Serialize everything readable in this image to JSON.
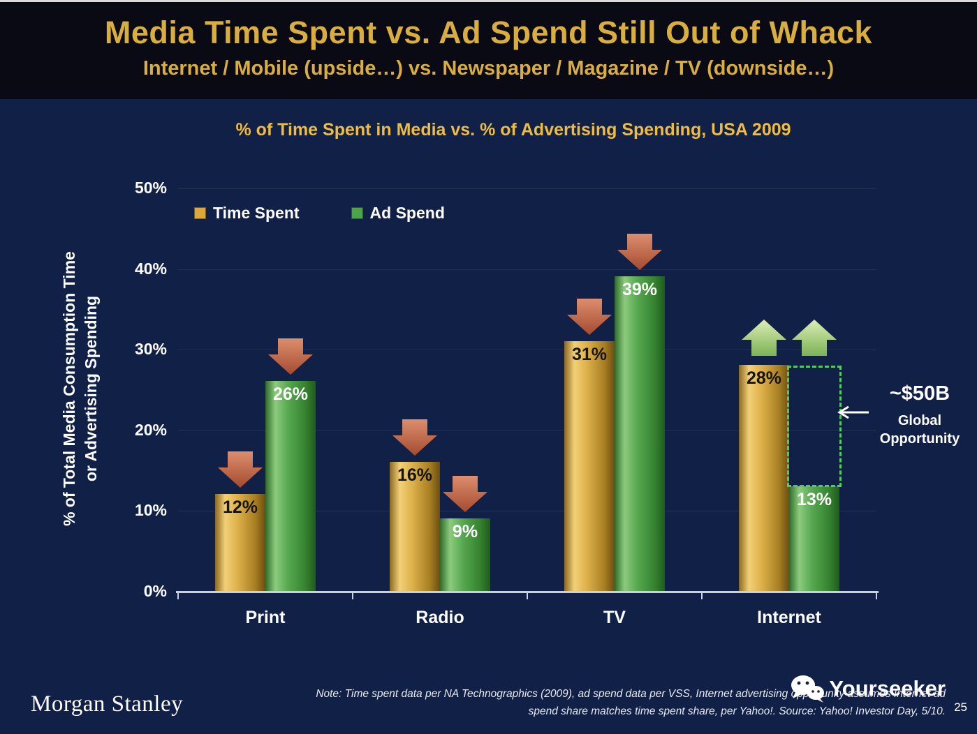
{
  "slide": {
    "title": "Media Time Spent vs. Ad Spend Still Out of Whack",
    "subtitle": "Internet / Mobile (upside…) vs. Newspaper / Magazine / TV (downside…)",
    "page_number": "25"
  },
  "chart_data": {
    "type": "bar",
    "title": "% of Time Spent in Media vs. % of Advertising Spending, USA 2009",
    "ylabel_line1": "% of Total Media Consumption Time",
    "ylabel_line2": "or Advertising Spending",
    "categories": [
      "Print",
      "Radio",
      "TV",
      "Internet"
    ],
    "series": [
      {
        "name": "Time Spent",
        "color": "#D9A93C",
        "values": [
          12,
          16,
          31,
          28
        ]
      },
      {
        "name": "Ad Spend",
        "color": "#4EA24E",
        "values": [
          26,
          9,
          39,
          13
        ]
      }
    ],
    "ylim": [
      0,
      50
    ],
    "ytick_step": 10,
    "ytick_labels": [
      "0%",
      "10%",
      "20%",
      "30%",
      "40%",
      "50%"
    ],
    "value_label_suffix": "%",
    "grid": true,
    "legend_position": "top-left",
    "colors": {
      "background": "#112047",
      "header_background": "#0A0A15",
      "title_gold": "#D9AD3E",
      "arrow_down": [
        "#DC8E6E",
        "#A54A30"
      ],
      "arrow_up": [
        "#DCEDB6",
        "#7DB254"
      ],
      "opportunity_box": "#55CA60",
      "axis": "#C9D0DE"
    },
    "annotations": {
      "arrow_directions": [
        [
          "down",
          "down"
        ],
        [
          "down",
          "down"
        ],
        [
          "down",
          "down"
        ],
        [
          "up",
          "up"
        ]
      ],
      "opportunity": {
        "category": "Internet",
        "from_value": 28,
        "to_value": 13,
        "label": "~$50B",
        "sub_line1": "Global",
        "sub_line2": "Opportunity"
      }
    }
  },
  "footer": {
    "brand": "Morgan Stanley",
    "note_line1": "Note: Time spent data per NA Technographics (2009), ad spend data per VSS, Internet advertising opportunity assumes Internet ad",
    "note_line2": "spend share matches time spent share, per Yahoo!. Source: Yahoo! Investor Day, 5/10.",
    "watermark": "Yourseeker"
  }
}
